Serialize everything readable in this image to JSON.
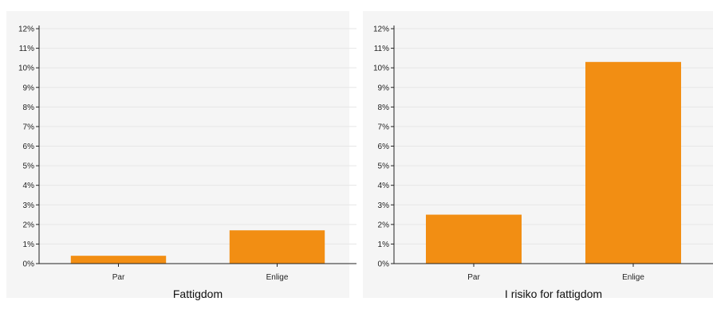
{
  "chart_data": [
    {
      "type": "bar",
      "title": "",
      "xlabel": "Fattigdom",
      "ylabel": "",
      "categories": [
        "Par",
        "Enlige"
      ],
      "values": [
        0.4,
        1.7
      ],
      "ylim": [
        0,
        12
      ],
      "yticks": [
        0,
        1,
        2,
        3,
        4,
        5,
        6,
        7,
        8,
        9,
        10,
        11,
        12
      ],
      "ytick_labels": [
        "0%",
        "1%",
        "2%",
        "3%",
        "4%",
        "5%",
        "6%",
        "7%",
        "8%",
        "9%",
        "10%",
        "11%",
        "12%"
      ],
      "grid": true,
      "bar_color": "#f28e13"
    },
    {
      "type": "bar",
      "title": "",
      "xlabel": "I risiko for fattigdom",
      "ylabel": "",
      "categories": [
        "Par",
        "Enlige"
      ],
      "values": [
        2.5,
        10.3
      ],
      "ylim": [
        0,
        12
      ],
      "yticks": [
        0,
        1,
        2,
        3,
        4,
        5,
        6,
        7,
        8,
        9,
        10,
        11,
        12
      ],
      "ytick_labels": [
        "0%",
        "1%",
        "2%",
        "3%",
        "4%",
        "5%",
        "6%",
        "7%",
        "8%",
        "9%",
        "10%",
        "11%",
        "12%"
      ],
      "grid": true,
      "bar_color": "#f28e13"
    }
  ],
  "colors": {
    "panel_background": "#f5f5f5",
    "grid": "#e6e6e6",
    "axis": "#222222"
  }
}
